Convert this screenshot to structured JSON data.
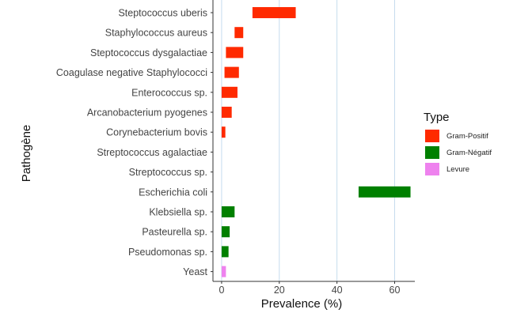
{
  "chart_data": {
    "type": "bar",
    "orientation": "horizontal",
    "xlabel": "Prevalence (%)",
    "ylabel": "Pathogène",
    "xlim": [
      -3,
      67
    ],
    "xticks": [
      0,
      20,
      40,
      60
    ],
    "grid": "vertical major lines",
    "legend_title": "Type",
    "legend_position": "right",
    "legend": [
      {
        "label": "Gram-Positif",
        "color": "#ff2a00"
      },
      {
        "label": "Gram-Négatif",
        "color": "#008000"
      },
      {
        "label": "Levure",
        "color": "#ee82ee"
      }
    ],
    "categories": [
      "Steptococcus uberis",
      "Staphylococcus aureus",
      "Steptococcus dysgalactiae",
      "Coagulase negative Staphylococci",
      "Enterococcus sp.",
      "Arcanobacterium pyogenes",
      "Corynebacterium bovis",
      "Streptococcus agalactiae",
      "Streptococcus sp.",
      "Escherichia coli",
      "Klebsiella sp.",
      "Pasteurella sp.",
      "Pseudomonas sp.",
      "Yeast"
    ],
    "bars": [
      {
        "category": "Steptococcus uberis",
        "type": "Gram-Positif",
        "x_start": 10.7,
        "x_end": 25.7
      },
      {
        "category": "Staphylococcus aureus",
        "type": "Gram-Positif",
        "x_start": 4.5,
        "x_end": 7.5
      },
      {
        "category": "Steptococcus dysgalactiae",
        "type": "Gram-Positif",
        "x_start": 1.5,
        "x_end": 7.5
      },
      {
        "category": "Coagulase negative Staphylococci",
        "type": "Gram-Positif",
        "x_start": 1.0,
        "x_end": 6.0
      },
      {
        "category": "Enterococcus sp.",
        "type": "Gram-Positif",
        "x_start": 0.0,
        "x_end": 5.5
      },
      {
        "category": "Arcanobacterium pyogenes",
        "type": "Gram-Positif",
        "x_start": 0.0,
        "x_end": 3.5
      },
      {
        "category": "Corynebacterium bovis",
        "type": "Gram-Positif",
        "x_start": 0.0,
        "x_end": 1.3
      },
      {
        "category": "Escherichia coli",
        "type": "Gram-Négatif",
        "x_start": 47.5,
        "x_end": 65.5
      },
      {
        "category": "Klebsiella sp.",
        "type": "Gram-Négatif",
        "x_start": 0.0,
        "x_end": 4.5
      },
      {
        "category": "Pasteurella sp.",
        "type": "Gram-Négatif",
        "x_start": 0.0,
        "x_end": 2.8
      },
      {
        "category": "Pseudomonas sp.",
        "type": "Gram-Négatif",
        "x_start": 0.0,
        "x_end": 2.4
      },
      {
        "category": "Yeast",
        "type": "Levure",
        "x_start": 0.0,
        "x_end": 1.5
      }
    ]
  }
}
